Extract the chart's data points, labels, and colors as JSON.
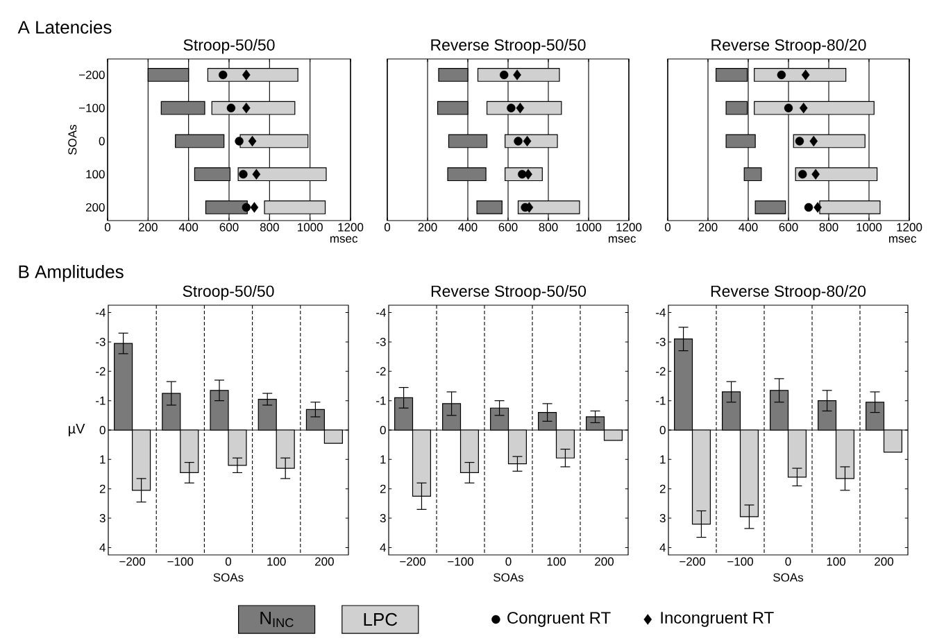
{
  "chart_data": [
    {
      "type": "bar",
      "orientation": "horizontal",
      "title": "Stroop-50/50",
      "ylabel": "SOAs",
      "xlabel": "msec",
      "annotations": [
        "A  Latencies"
      ],
      "categories": [
        "−200",
        "−100",
        "0",
        "100",
        "200"
      ],
      "xlim": [
        0,
        1200
      ],
      "xticks": [
        0,
        200,
        400,
        600,
        800,
        1000,
        1200
      ],
      "grid": "x",
      "legend": "bottom",
      "series": [
        {
          "name": "N$_{INC}$",
          "color": "#7a7a7a",
          "base": [
            200,
            265,
            335,
            430,
            485
          ],
          "values": [
            200,
            215,
            240,
            175,
            205
          ]
        },
        {
          "name": "LPC",
          "color": "#d0d0d0",
          "base": [
            495,
            515,
            655,
            645,
            775
          ],
          "values": [
            445,
            410,
            335,
            435,
            300
          ]
        },
        {
          "name": "Congruent RT",
          "type": "scatter",
          "marker": "circle",
          "color": "#000000",
          "values": [
            570,
            610,
            650,
            670,
            685
          ]
        },
        {
          "name": "Incongruent RT",
          "type": "scatter",
          "marker": "diamond",
          "color": "#000000",
          "values": [
            685,
            685,
            715,
            735,
            725
          ]
        }
      ]
    },
    {
      "type": "bar",
      "orientation": "horizontal",
      "title": "Reverse Stroop-50/50",
      "xlabel": "msec",
      "categories": [
        "−200",
        "−100",
        "0",
        "100",
        "200"
      ],
      "xlim": [
        0,
        1200
      ],
      "xticks": [
        0,
        200,
        400,
        600,
        800,
        1000,
        1200
      ],
      "grid": "x",
      "tick_labels": "x",
      "series": [
        {
          "color": "#7a7a7a",
          "base": [
            255,
            250,
            305,
            300,
            445
          ],
          "values": [
            145,
            150,
            190,
            190,
            125
          ]
        },
        {
          "color": "#d0d0d0",
          "base": [
            450,
            495,
            585,
            585,
            650
          ],
          "values": [
            405,
            370,
            260,
            185,
            305
          ]
        },
        {
          "type": "scatter",
          "marker": "circle",
          "color": "#000000",
          "values": [
            580,
            615,
            650,
            670,
            685
          ]
        },
        {
          "type": "scatter",
          "marker": "diamond",
          "color": "#000000",
          "values": [
            645,
            660,
            695,
            700,
            705
          ]
        }
      ]
    },
    {
      "type": "bar",
      "orientation": "horizontal",
      "title": "Reverse Stroop-80/20",
      "xlabel": "msec",
      "categories": [
        "−200",
        "−100",
        "0",
        "100",
        "200"
      ],
      "xlim": [
        0,
        1200
      ],
      "xticks": [
        0,
        200,
        400,
        600,
        800,
        1000,
        1200
      ],
      "grid": "x",
      "tick_labels": "x",
      "series": [
        {
          "color": "#7a7a7a",
          "base": [
            240,
            290,
            290,
            380,
            435
          ],
          "values": [
            155,
            105,
            145,
            85,
            150
          ]
        },
        {
          "color": "#d0d0d0",
          "base": [
            430,
            430,
            625,
            635,
            755
          ],
          "values": [
            455,
            595,
            355,
            405,
            300
          ]
        },
        {
          "type": "scatter",
          "marker": "circle",
          "color": "#000000",
          "values": [
            565,
            600,
            655,
            670,
            700
          ]
        },
        {
          "type": "scatter",
          "marker": "diamond",
          "color": "#000000",
          "values": [
            685,
            675,
            725,
            735,
            745
          ]
        }
      ]
    },
    {
      "type": "bar",
      "title": "Stroop-50/50",
      "xlabel": "SOAs",
      "ylabel": "µV",
      "annotations": [
        "B  Amplitudes"
      ],
      "categories": [
        "−200",
        "−100",
        "0",
        "100",
        "200"
      ],
      "ylim": [
        4.25,
        -4.25
      ],
      "yticks": [
        -4,
        -3,
        -2,
        -1,
        0,
        1,
        2,
        3,
        4
      ],
      "grid": "x",
      "series": [
        {
          "color": "#7a7a7a",
          "values": [
            -2.95,
            -1.25,
            -1.35,
            -1.05,
            -0.7
          ],
          "errors": [
            0.35,
            0.4,
            0.35,
            0.2,
            0.25
          ]
        },
        {
          "color": "#d0d0d0",
          "values": [
            2.05,
            1.45,
            1.2,
            1.3,
            0.45
          ],
          "errors": [
            0.4,
            0.35,
            0.25,
            0.35,
            null
          ]
        }
      ]
    },
    {
      "type": "bar",
      "title": "Reverse Stroop-50/50",
      "xlabel": "SOAs",
      "categories": [
        "−200",
        "−100",
        "0",
        "100",
        "200"
      ],
      "ylim": [
        4.25,
        -4.25
      ],
      "yticks": [
        -4,
        -3,
        -2,
        -1,
        0,
        1,
        2,
        3,
        4
      ],
      "grid": "x",
      "series": [
        {
          "color": "#7a7a7a",
          "values": [
            -1.1,
            -0.9,
            -0.75,
            -0.6,
            -0.45
          ],
          "errors": [
            0.35,
            0.4,
            0.25,
            0.3,
            0.2
          ]
        },
        {
          "color": "#d0d0d0",
          "values": [
            2.25,
            1.45,
            1.15,
            0.95,
            0.35
          ],
          "errors": [
            0.45,
            0.35,
            0.25,
            0.3,
            null
          ]
        }
      ]
    },
    {
      "type": "bar",
      "title": "Reverse Stroop-80/20",
      "xlabel": "SOAs",
      "categories": [
        "−200",
        "−100",
        "0",
        "100",
        "200"
      ],
      "ylim": [
        4.25,
        -4.25
      ],
      "yticks": [
        -4,
        -3,
        -2,
        -1,
        0,
        1,
        2,
        3,
        4
      ],
      "grid": "x",
      "series": [
        {
          "color": "#7a7a7a",
          "values": [
            -3.1,
            -1.3,
            -1.35,
            -1.0,
            -0.95
          ],
          "errors": [
            0.4,
            0.35,
            0.4,
            0.35,
            0.35
          ]
        },
        {
          "color": "#d0d0d0",
          "values": [
            3.2,
            2.95,
            1.6,
            1.65,
            0.75
          ],
          "errors": [
            0.45,
            0.4,
            0.3,
            0.4,
            null
          ]
        }
      ]
    }
  ]
}
